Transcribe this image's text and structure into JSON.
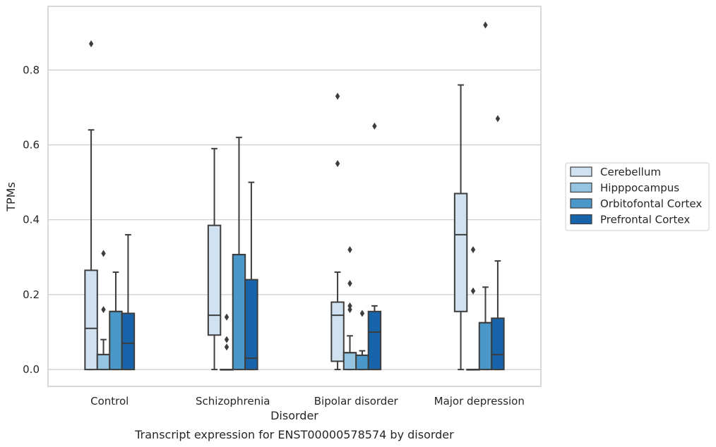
{
  "caption": "Transcript expression for ENST00000578574 by disorder",
  "chart_data": {
    "type": "boxplot",
    "xlabel": "Disorder",
    "ylabel": "TPMs",
    "ylim": [
      -0.045,
      0.97
    ],
    "yticks": [
      0.0,
      0.2,
      0.4,
      0.6,
      0.8
    ],
    "ytick_labels": [
      "0.0",
      "0.2",
      "0.4",
      "0.6",
      "0.8"
    ],
    "grid": "horizontal",
    "legend_position": "right",
    "categories": [
      "Control",
      "Schizophrenia",
      "Bipolar disorder",
      "Major depression"
    ],
    "series": [
      {
        "name": "Cerebellum",
        "color": "#d0e1f2",
        "boxes": [
          {
            "whislo": 0.0,
            "q1": 0.0,
            "med": 0.11,
            "q3": 0.265,
            "whishi": 0.64,
            "fliers": [
              0.87
            ]
          },
          {
            "whislo": 0.0,
            "q1": 0.092,
            "med": 0.145,
            "q3": 0.385,
            "whishi": 0.59,
            "fliers": []
          },
          {
            "whislo": 0.0,
            "q1": 0.022,
            "med": 0.145,
            "q3": 0.18,
            "whishi": 0.26,
            "fliers": [
              0.55,
              0.73
            ]
          },
          {
            "whislo": 0.0,
            "q1": 0.155,
            "med": 0.36,
            "q3": 0.47,
            "whishi": 0.76,
            "fliers": []
          }
        ]
      },
      {
        "name": "Hipppocampus",
        "color": "#94c4df",
        "boxes": [
          {
            "whislo": 0.0,
            "q1": 0.0,
            "med": 0.04,
            "q3": 0.04,
            "whishi": 0.08,
            "fliers": [
              0.16,
              0.31
            ]
          },
          {
            "whislo": 0.0,
            "q1": 0.0,
            "med": 0.0,
            "q3": 0.0,
            "whishi": 0.0,
            "fliers": [
              0.06,
              0.08,
              0.14
            ]
          },
          {
            "whislo": 0.0,
            "q1": 0.0,
            "med": 0.045,
            "q3": 0.045,
            "whishi": 0.09,
            "fliers": [
              0.16,
              0.17,
              0.23,
              0.32
            ]
          },
          {
            "whislo": 0.0,
            "q1": 0.0,
            "med": 0.0,
            "q3": 0.0,
            "whishi": 0.0,
            "fliers": [
              0.21,
              0.32
            ]
          }
        ]
      },
      {
        "name": "Orbitofontal Cortex",
        "color": "#4a98c9",
        "boxes": [
          {
            "whislo": 0.0,
            "q1": 0.0,
            "med": 0.155,
            "q3": 0.155,
            "whishi": 0.26,
            "fliers": []
          },
          {
            "whislo": 0.0,
            "q1": 0.0,
            "med": 0.307,
            "q3": 0.307,
            "whishi": 0.62,
            "fliers": []
          },
          {
            "whislo": 0.0,
            "q1": 0.0,
            "med": 0.038,
            "q3": 0.038,
            "whishi": 0.05,
            "fliers": [
              0.15
            ]
          },
          {
            "whislo": 0.0,
            "q1": 0.0,
            "med": 0.125,
            "q3": 0.125,
            "whishi": 0.22,
            "fliers": [
              0.92
            ]
          }
        ]
      },
      {
        "name": "Prefrontal Cortex",
        "color": "#1764ab",
        "boxes": [
          {
            "whislo": 0.0,
            "q1": 0.0,
            "med": 0.07,
            "q3": 0.15,
            "whishi": 0.36,
            "fliers": []
          },
          {
            "whislo": 0.0,
            "q1": 0.0,
            "med": 0.03,
            "q3": 0.24,
            "whishi": 0.5,
            "fliers": []
          },
          {
            "whislo": 0.0,
            "q1": 0.0,
            "med": 0.1,
            "q3": 0.155,
            "whishi": 0.17,
            "fliers": [
              0.65
            ]
          },
          {
            "whislo": 0.0,
            "q1": 0.0,
            "med": 0.04,
            "q3": 0.137,
            "whishi": 0.29,
            "fliers": [
              0.67
            ]
          }
        ]
      }
    ]
  }
}
